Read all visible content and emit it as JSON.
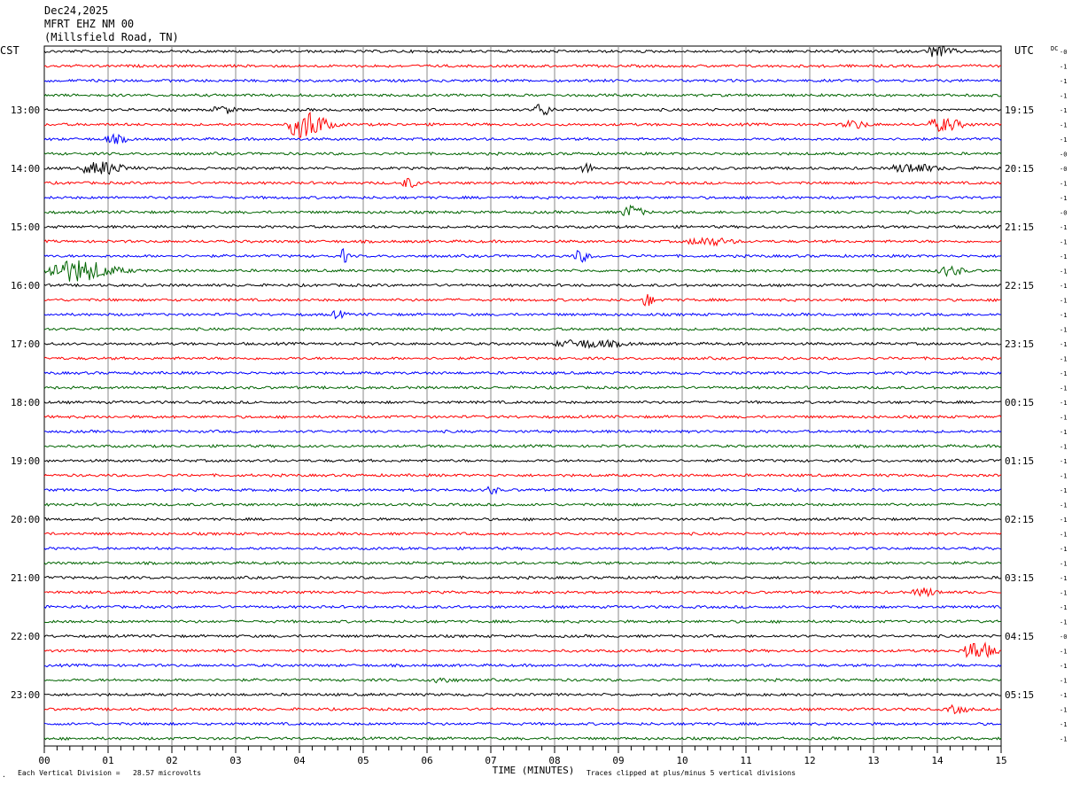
{
  "header": {
    "date": "Dec24,2025",
    "station": "MFRT EHZ NM 00",
    "location": "(Millsfield Road, TN)"
  },
  "labels": {
    "left_zone": "CST",
    "right_zone": "UTC",
    "dc": "DC"
  },
  "footer": {
    "corner_mark": ".",
    "vertical_division": "Each Vertical Division =   28.57 microvolts",
    "clipping": "Traces clipped at plus/minus 5 vertical divisions"
  },
  "chart_data": {
    "type": "line",
    "subtype": "helicorder",
    "xlabel": "TIME (MINUTES)",
    "x_ticks": [
      "00",
      "01",
      "02",
      "03",
      "04",
      "05",
      "06",
      "07",
      "08",
      "09",
      "10",
      "11",
      "12",
      "13",
      "14",
      "15"
    ],
    "xlim": [
      0,
      15
    ],
    "trace_colors": [
      "#000000",
      "#ff0000",
      "#0000ff",
      "#006400"
    ],
    "trace_count": 48,
    "traces_per_hour": 4,
    "left_hour_labels": [
      "13:00",
      "14:00",
      "15:00",
      "16:00",
      "17:00",
      "18:00",
      "19:00",
      "20:00",
      "21:00",
      "22:00",
      "23:00"
    ],
    "right_hour_labels": [
      "19:15",
      "20:15",
      "21:15",
      "22:15",
      "23:15",
      "00:15",
      "01:15",
      "02:15",
      "03:15",
      "04:15",
      "05:15"
    ],
    "hour_label_start_trace": 4,
    "dc_offsets": [
      "-0",
      "-1",
      "-1",
      "-1",
      "-1",
      "-1",
      "-1",
      "-0",
      "-0",
      "-1",
      "-1",
      "-0",
      "-1",
      "-1",
      "-1",
      "-1",
      "-1",
      "-1",
      "-1",
      "-1",
      "-1",
      "-1",
      "-1",
      "-1",
      "-1",
      "-1",
      "-1",
      "-1",
      "-1",
      "-1",
      "-1",
      "-1",
      "-1",
      "-1",
      "-1",
      "-1",
      "-1",
      "-1",
      "-1",
      "-1",
      "-0",
      "-1",
      "-1",
      "-1",
      "-1",
      "-1",
      "-1",
      "-1"
    ],
    "events": [
      {
        "trace": 0,
        "minute": 14.0,
        "amplitude": 6,
        "width": 0.35
      },
      {
        "trace": 4,
        "minute": 7.8,
        "amplitude": 7,
        "width": 0.2
      },
      {
        "trace": 4,
        "minute": 2.8,
        "amplitude": 4,
        "width": 0.25
      },
      {
        "trace": 5,
        "minute": 4.1,
        "amplitude": 16,
        "width": 0.45
      },
      {
        "trace": 5,
        "minute": 14.1,
        "amplitude": 7,
        "width": 0.4
      },
      {
        "trace": 5,
        "minute": 12.7,
        "amplitude": 4,
        "width": 0.3
      },
      {
        "trace": 6,
        "minute": 1.1,
        "amplitude": 4,
        "width": 0.3
      },
      {
        "trace": 8,
        "minute": 0.9,
        "amplitude": 7,
        "width": 0.5
      },
      {
        "trace": 8,
        "minute": 8.5,
        "amplitude": 5,
        "width": 0.15
      },
      {
        "trace": 8,
        "minute": 13.6,
        "amplitude": 5,
        "width": 0.5
      },
      {
        "trace": 9,
        "minute": 5.7,
        "amplitude": 5,
        "width": 0.2
      },
      {
        "trace": 11,
        "minute": 9.2,
        "amplitude": 7,
        "width": 0.25
      },
      {
        "trace": 13,
        "minute": 10.4,
        "amplitude": 4,
        "width": 0.5
      },
      {
        "trace": 14,
        "minute": 4.7,
        "amplitude": 8,
        "width": 0.08
      },
      {
        "trace": 14,
        "minute": 8.4,
        "amplitude": 6,
        "width": 0.2
      },
      {
        "trace": 15,
        "minute": 0.5,
        "amplitude": 12,
        "width": 0.8
      },
      {
        "trace": 15,
        "minute": 14.2,
        "amplitude": 5,
        "width": 0.3
      },
      {
        "trace": 17,
        "minute": 9.45,
        "amplitude": 8,
        "width": 0.12
      },
      {
        "trace": 18,
        "minute": 4.6,
        "amplitude": 4,
        "width": 0.15
      },
      {
        "trace": 20,
        "minute": 8.5,
        "amplitude": 4,
        "width": 0.8
      },
      {
        "trace": 30,
        "minute": 7.0,
        "amplitude": 4,
        "width": 0.15
      },
      {
        "trace": 37,
        "minute": 13.8,
        "amplitude": 4,
        "width": 0.3
      },
      {
        "trace": 41,
        "minute": 14.6,
        "amplitude": 10,
        "width": 0.4
      },
      {
        "trace": 43,
        "minute": 6.2,
        "amplitude": 3,
        "width": 0.3
      },
      {
        "trace": 45,
        "minute": 14.3,
        "amplitude": 4,
        "width": 0.25
      }
    ]
  }
}
